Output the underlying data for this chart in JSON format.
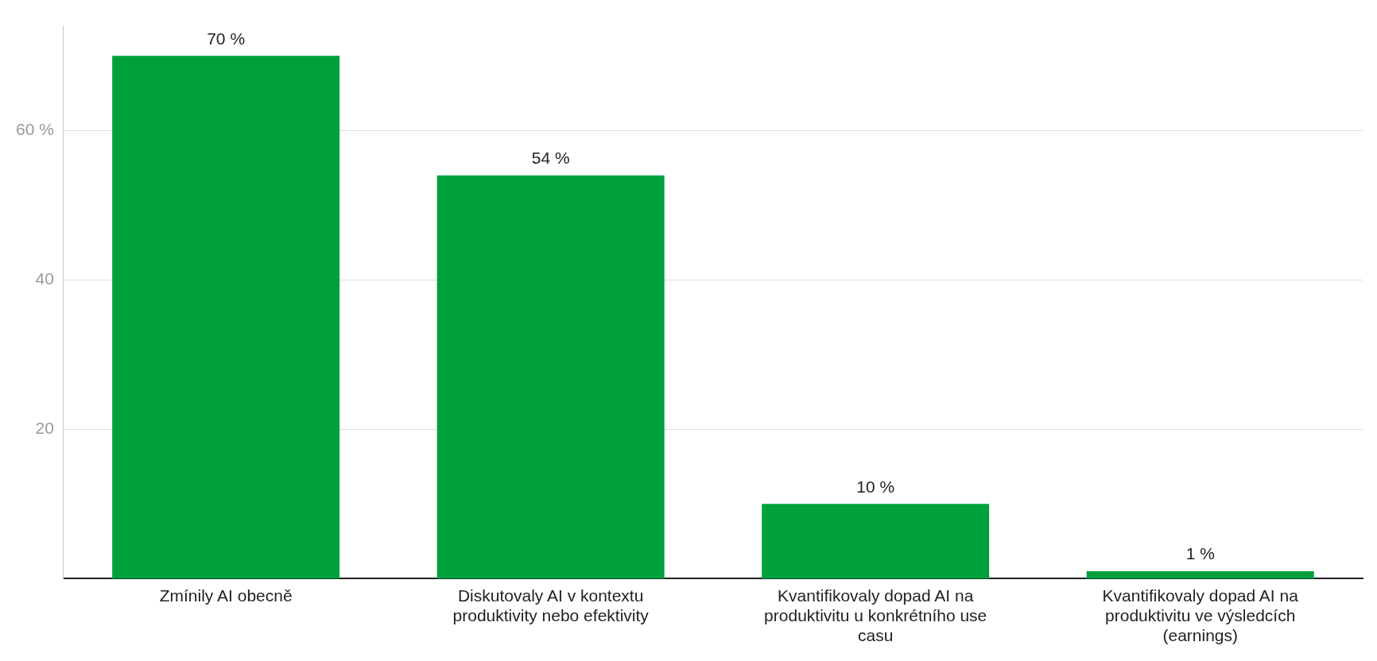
{
  "chart_data": {
    "type": "bar",
    "categories": [
      "Zmínily AI obecně",
      "Diskutovaly AI v kontextu produktivity nebo efektivity",
      "Kvantifikovaly dopad AI na produktivitu u konkrétního use casu",
      "Kvantifikovaly dopad AI na produktivitu ve výsledcích (earnings)"
    ],
    "values": [
      70,
      54,
      10,
      1
    ],
    "value_labels": [
      "70 %",
      "54 %",
      "10 %",
      "1 %"
    ],
    "color": "#00a03c",
    "ylim": [
      0,
      74
    ],
    "yticks": [
      {
        "value": 20,
        "label": "20"
      },
      {
        "value": 40,
        "label": "40"
      },
      {
        "value": 60,
        "label": "60 %"
      }
    ],
    "grid": "y"
  }
}
